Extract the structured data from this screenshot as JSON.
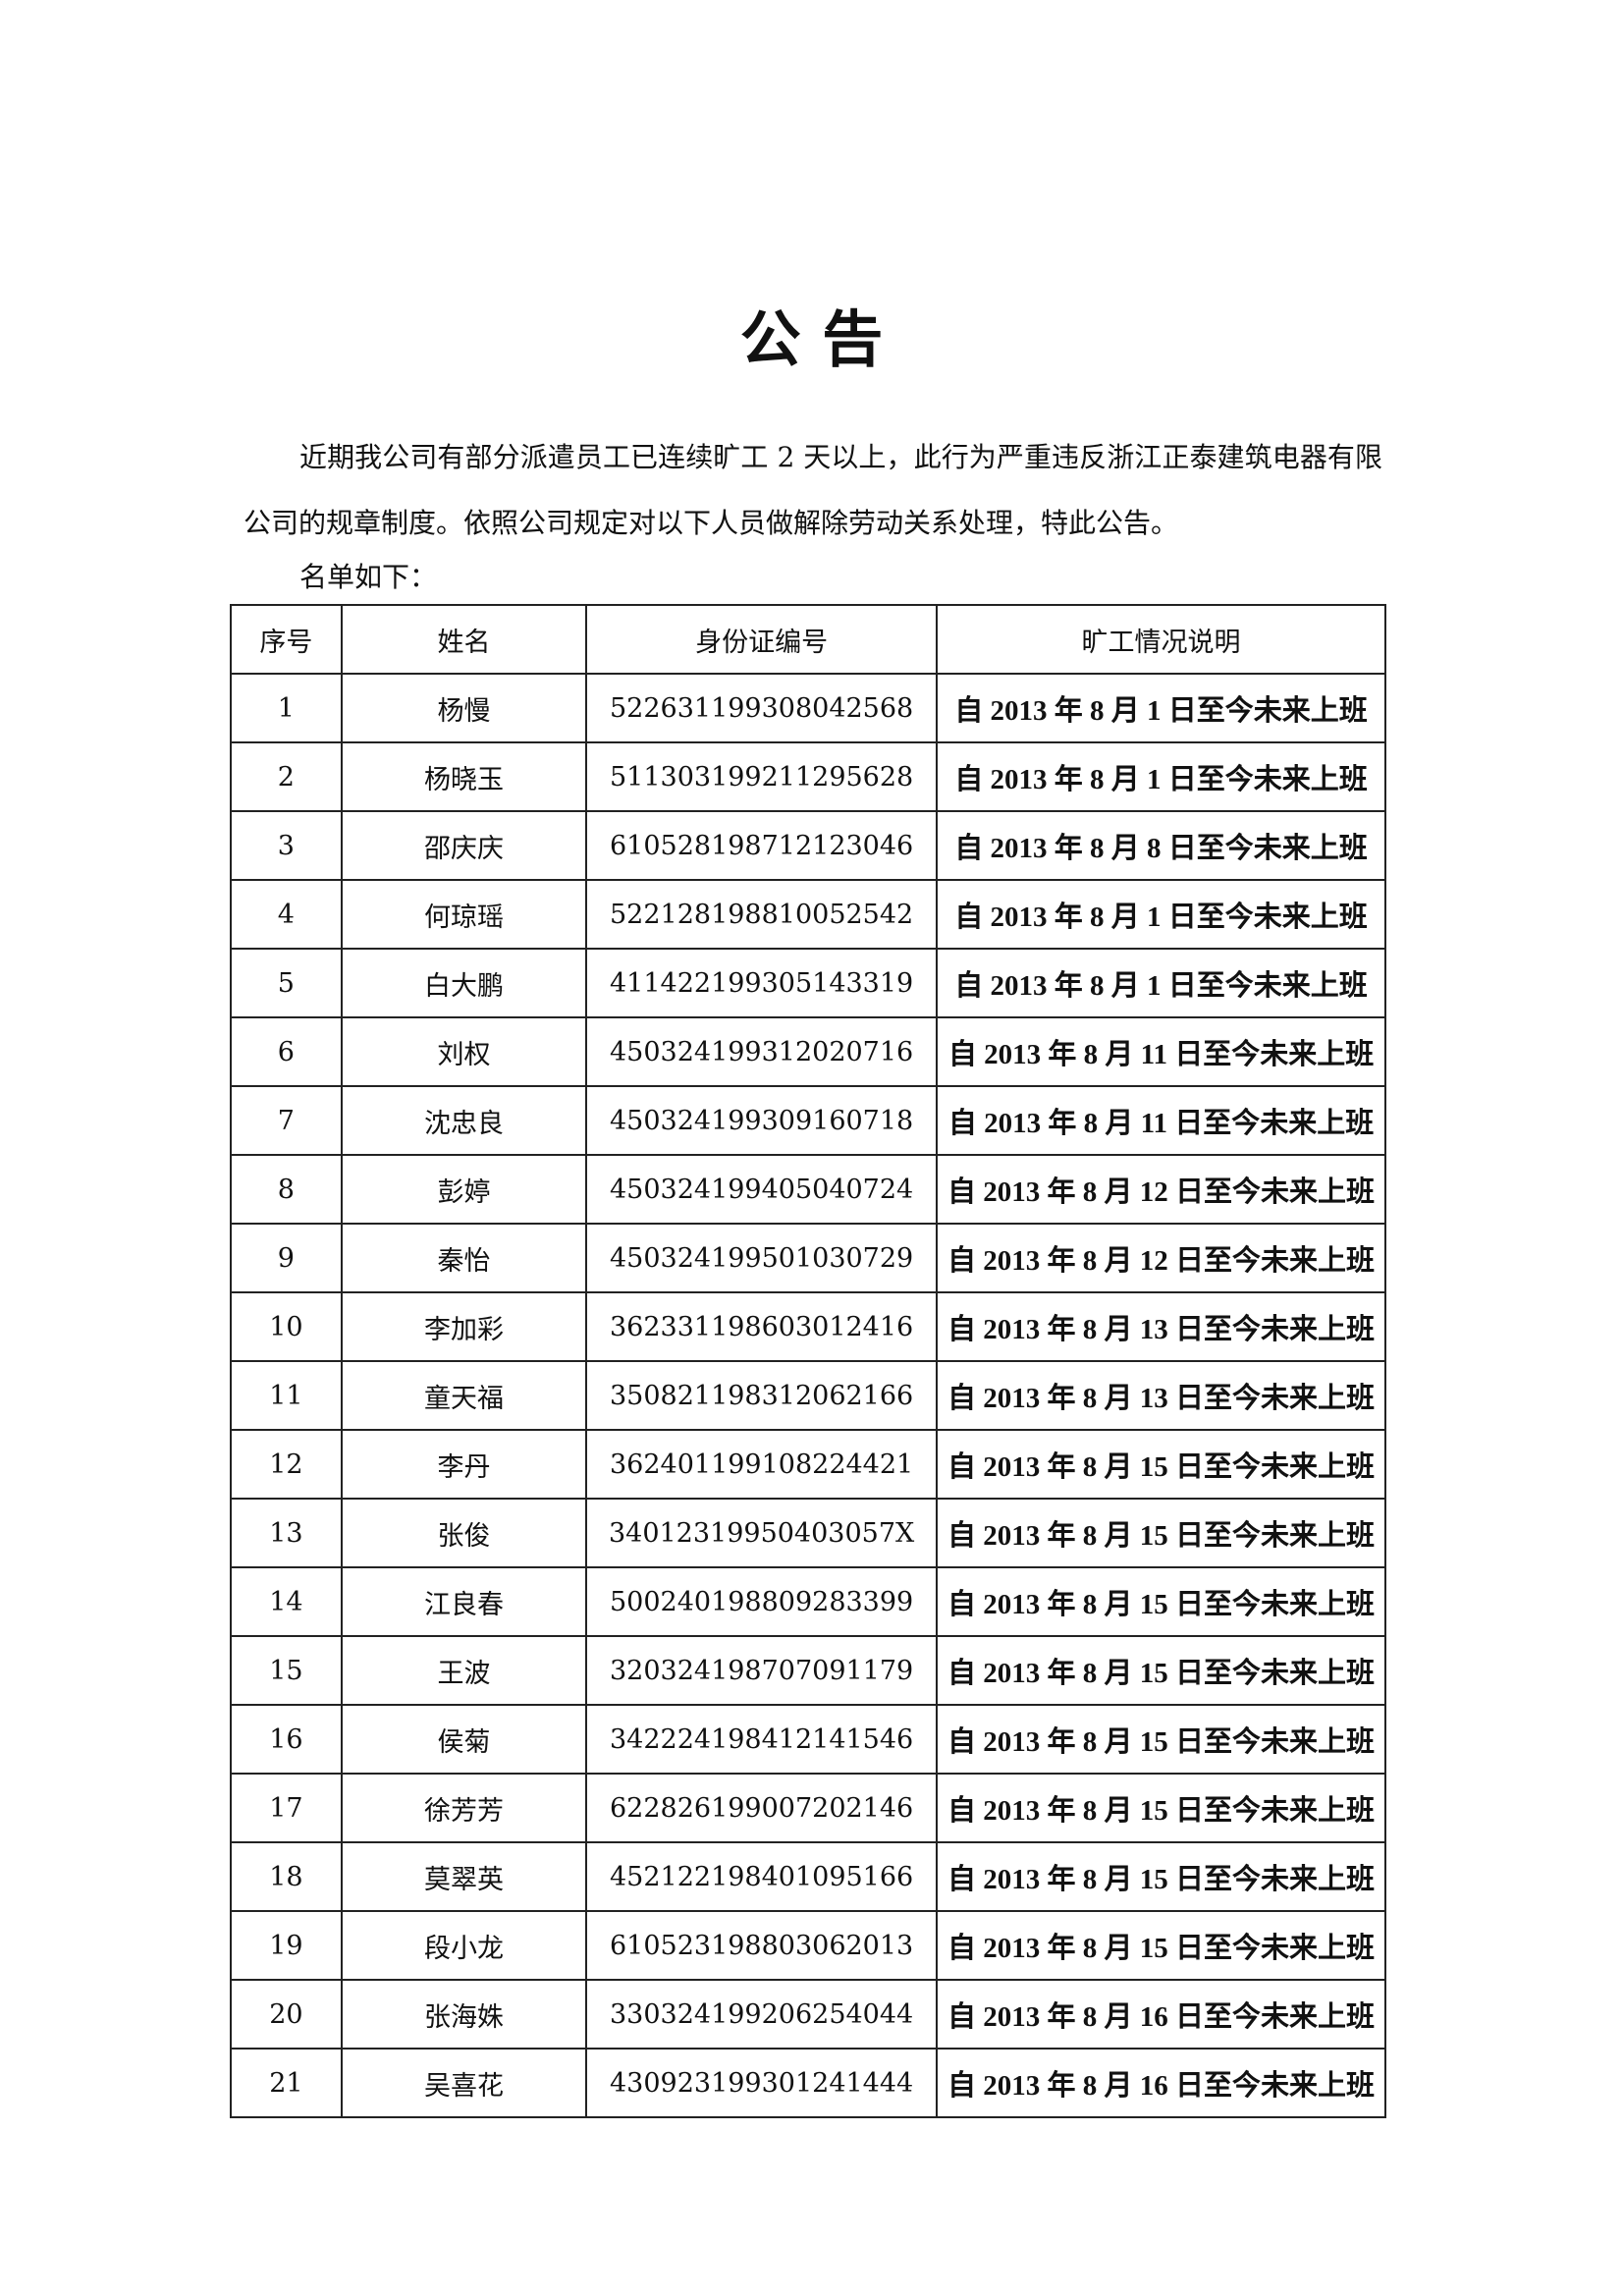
{
  "header": {
    "title": "公 告"
  },
  "body": {
    "paragraph": "近期我公司有部分派遣员工已连续旷工 2 天以上，此行为严重违反浙江正泰建筑电器有限公司的规章制度。依照公司规定对以下人员做解除劳动关系处理，特此公告。",
    "list_intro": "名单如下："
  },
  "table": {
    "columns": [
      "序号",
      "姓名",
      "身份证编号",
      "旷工情况说明"
    ],
    "rows": [
      [
        "1",
        "杨慢",
        "522631199308042568",
        "自 2013 年 8 月 1 日至今未来上班"
      ],
      [
        "2",
        "杨晓玉",
        "511303199211295628",
        "自 2013 年 8 月 1 日至今未来上班"
      ],
      [
        "3",
        "邵庆庆",
        "610528198712123046",
        "自 2013 年 8 月 8 日至今未来上班"
      ],
      [
        "4",
        "何琼瑶",
        "522128198810052542",
        "自 2013 年 8 月 1 日至今未来上班"
      ],
      [
        "5",
        "白大鹏",
        "411422199305143319",
        "自 2013 年 8 月 1 日至今未来上班"
      ],
      [
        "6",
        "刘权",
        "450324199312020716",
        "自 2013 年 8 月 11 日至今未来上班"
      ],
      [
        "7",
        "沈忠良",
        "450324199309160718",
        "自 2013 年 8 月 11 日至今未来上班"
      ],
      [
        "8",
        "彭婷",
        "450324199405040724",
        "自 2013 年 8 月 12 日至今未来上班"
      ],
      [
        "9",
        "秦怡",
        "450324199501030729",
        "自 2013 年 8 月 12 日至今未来上班"
      ],
      [
        "10",
        "李加彩",
        "362331198603012416",
        "自 2013 年 8 月 13 日至今未来上班"
      ],
      [
        "11",
        "童天福",
        "350821198312062166",
        "自 2013 年 8 月 13 日至今未来上班"
      ],
      [
        "12",
        "李丹",
        "362401199108224421",
        "自 2013 年 8 月 15 日至今未来上班"
      ],
      [
        "13",
        "张俊",
        "34012319950403057X",
        "自 2013 年 8 月 15 日至今未来上班"
      ],
      [
        "14",
        "江良春",
        "500240198809283399",
        "自 2013 年 8 月 15 日至今未来上班"
      ],
      [
        "15",
        "王波",
        "320324198707091179",
        "自 2013 年 8 月 15 日至今未来上班"
      ],
      [
        "16",
        "侯菊",
        "342224198412141546",
        "自 2013 年 8 月 15 日至今未来上班"
      ],
      [
        "17",
        "徐芳芳",
        "622826199007202146",
        "自 2013 年 8 月 15 日至今未来上班"
      ],
      [
        "18",
        "莫翠英",
        "452122198401095166",
        "自 2013 年 8 月 15 日至今未来上班"
      ],
      [
        "19",
        "段小龙",
        "610523198803062013",
        "自 2013 年 8 月 15 日至今未来上班"
      ],
      [
        "20",
        "张海姝",
        "330324199206254044",
        "自 2013 年 8 月 16 日至今未来上班"
      ],
      [
        "21",
        "吴喜花",
        "430923199301241444",
        "自 2013 年 8 月 16 日至今未来上班"
      ]
    ]
  }
}
